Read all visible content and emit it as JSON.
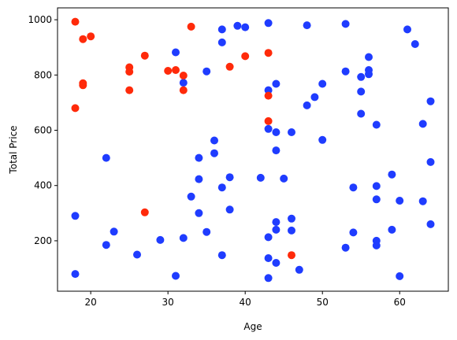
{
  "chart_data": {
    "type": "scatter",
    "xlabel": "Age",
    "ylabel": "Total Price",
    "xlim": [
      15.7,
      66.3
    ],
    "ylim": [
      17.5,
      1043
    ],
    "xticks": [
      20,
      30,
      40,
      50,
      60
    ],
    "yticks": [
      200,
      400,
      600,
      800,
      1000
    ],
    "grid": false,
    "colors": {
      "blue": "#1f3cff",
      "red": "#ff2a0a"
    },
    "series": [
      {
        "color": "blue",
        "points": [
          [
            18,
            290
          ],
          [
            18,
            80
          ],
          [
            22,
            500
          ],
          [
            22,
            185
          ],
          [
            23,
            233
          ],
          [
            26,
            150
          ],
          [
            29,
            203
          ],
          [
            31,
            882
          ],
          [
            31,
            73
          ],
          [
            32,
            772
          ],
          [
            32,
            210
          ],
          [
            33,
            360
          ],
          [
            34,
            500
          ],
          [
            34,
            423
          ],
          [
            34,
            300
          ],
          [
            35,
            813
          ],
          [
            35,
            232
          ],
          [
            36,
            563
          ],
          [
            36,
            517
          ],
          [
            37,
            965
          ],
          [
            37,
            918
          ],
          [
            37,
            393
          ],
          [
            37,
            148
          ],
          [
            38,
            430
          ],
          [
            38,
            313
          ],
          [
            39,
            978
          ],
          [
            40,
            973
          ],
          [
            42,
            428
          ],
          [
            43,
            988
          ],
          [
            43,
            745
          ],
          [
            43,
            605
          ],
          [
            43,
            213
          ],
          [
            43,
            137
          ],
          [
            43,
            65
          ],
          [
            44,
            768
          ],
          [
            44,
            593
          ],
          [
            44,
            527
          ],
          [
            44,
            268
          ],
          [
            44,
            240
          ],
          [
            44,
            120
          ],
          [
            45,
            425
          ],
          [
            46,
            593
          ],
          [
            46,
            280
          ],
          [
            46,
            237
          ],
          [
            47,
            95
          ],
          [
            48,
            980
          ],
          [
            48,
            690
          ],
          [
            49,
            720
          ],
          [
            50,
            768
          ],
          [
            50,
            565
          ],
          [
            53,
            985
          ],
          [
            53,
            813
          ],
          [
            53,
            175
          ],
          [
            54,
            393
          ],
          [
            54,
            230
          ],
          [
            55,
            793
          ],
          [
            55,
            740
          ],
          [
            55,
            660
          ],
          [
            56,
            865
          ],
          [
            56,
            818
          ],
          [
            56,
            803
          ],
          [
            57,
            620
          ],
          [
            57,
            398
          ],
          [
            57,
            350
          ],
          [
            57,
            200
          ],
          [
            57,
            183
          ],
          [
            59,
            440
          ],
          [
            59,
            240
          ],
          [
            60,
            345
          ],
          [
            60,
            72
          ],
          [
            61,
            965
          ],
          [
            62,
            912
          ],
          [
            63,
            623
          ],
          [
            63,
            343
          ],
          [
            64,
            705
          ],
          [
            64,
            485
          ],
          [
            64,
            260
          ]
        ]
      },
      {
        "color": "red",
        "points": [
          [
            18,
            993
          ],
          [
            18,
            680
          ],
          [
            19,
            930
          ],
          [
            19,
            770
          ],
          [
            19,
            763
          ],
          [
            20,
            940
          ],
          [
            25,
            828
          ],
          [
            25,
            812
          ],
          [
            25,
            745
          ],
          [
            27,
            870
          ],
          [
            27,
            303
          ],
          [
            30,
            815
          ],
          [
            31,
            818
          ],
          [
            32,
            798
          ],
          [
            32,
            745
          ],
          [
            33,
            975
          ],
          [
            38,
            830
          ],
          [
            40,
            868
          ],
          [
            43,
            880
          ],
          [
            43,
            725
          ],
          [
            43,
            633
          ],
          [
            46,
            148
          ]
        ]
      }
    ]
  }
}
